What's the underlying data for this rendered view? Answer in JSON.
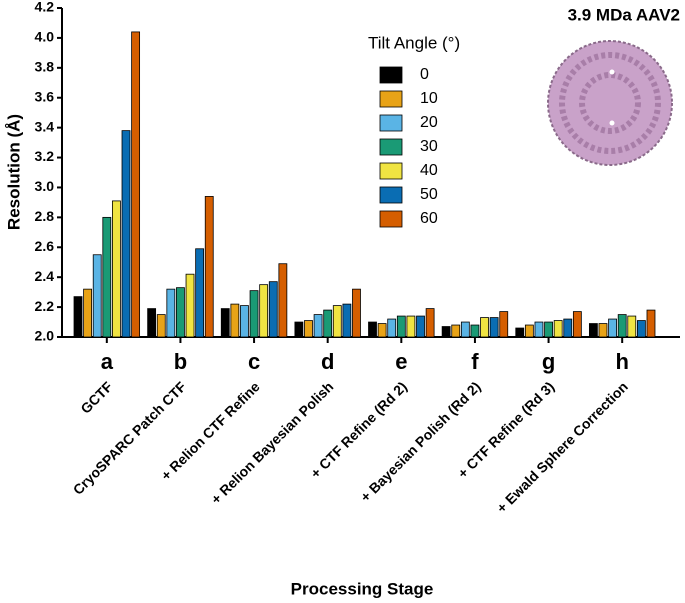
{
  "chart_data": {
    "type": "bar",
    "annotation": "3.9 MDa AAV2",
    "y_label": "Resolution (Å)",
    "x_label": "Processing Stage",
    "legend_title": "Tilt Angle (°)",
    "categories": [
      "a",
      "b",
      "c",
      "d",
      "e",
      "f",
      "g",
      "h"
    ],
    "category_descriptions": [
      "GCTF",
      "CryoSPARC Patch CTF",
      "+ Relion CTF Refine",
      "+ Relion Bayesian Polish",
      "+ CTF Refine (Rd 2)",
      "+ Bayesian Polish (Rd 2)",
      "+ CTF Refine (Rd 3)",
      "+ Ewald Sphere Correction"
    ],
    "series": [
      {
        "name": "0",
        "color": "#000000",
        "values": [
          2.27,
          2.19,
          2.19,
          2.1,
          2.1,
          2.07,
          2.06,
          2.09
        ]
      },
      {
        "name": "10",
        "color": "#e8a317",
        "values": [
          2.32,
          2.15,
          2.22,
          2.11,
          2.09,
          2.08,
          2.08,
          2.09
        ]
      },
      {
        "name": "20",
        "color": "#5ab4e5",
        "values": [
          2.55,
          2.32,
          2.21,
          2.15,
          2.12,
          2.1,
          2.1,
          2.12
        ]
      },
      {
        "name": "30",
        "color": "#1a9a75",
        "values": [
          2.8,
          2.33,
          2.31,
          2.18,
          2.14,
          2.08,
          2.1,
          2.15
        ]
      },
      {
        "name": "40",
        "color": "#f0e442",
        "values": [
          2.91,
          2.42,
          2.35,
          2.21,
          2.14,
          2.13,
          2.11,
          2.14
        ]
      },
      {
        "name": "50",
        "color": "#0a6db3",
        "values": [
          3.38,
          2.59,
          2.37,
          2.22,
          2.14,
          2.13,
          2.12,
          2.11
        ]
      },
      {
        "name": "60",
        "color": "#d55e00",
        "values": [
          4.04,
          2.94,
          2.49,
          2.32,
          2.19,
          2.17,
          2.17,
          2.18
        ]
      }
    ],
    "ylim": [
      2.0,
      4.2
    ],
    "yticks": [
      {
        "value": 2.0,
        "label": "2.0"
      },
      {
        "value": 2.2,
        "label": "2.2"
      },
      {
        "value": 2.4,
        "label": "2.4"
      },
      {
        "value": 2.6,
        "label": "2.6"
      },
      {
        "value": 2.8,
        "label": "2.8"
      },
      {
        "value": 3.0,
        "label": "3.0"
      },
      {
        "value": 3.2,
        "label": "3.2"
      },
      {
        "value": 3.4,
        "label": "3.4"
      },
      {
        "value": 3.6,
        "label": "3.6"
      },
      {
        "value": 3.8,
        "label": "3.8"
      },
      {
        "value": 4.0,
        "label": "4.0"
      },
      {
        "value": 4.2,
        "label": "4.2"
      }
    ],
    "grid": false
  }
}
